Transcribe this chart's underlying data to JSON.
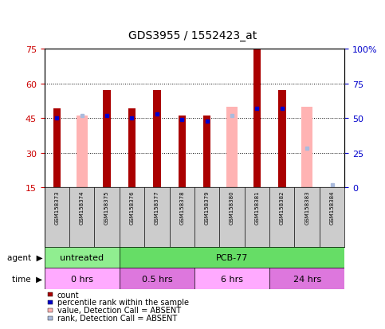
{
  "title": "GDS3955 / 1552423_at",
  "samples": [
    "GSM158373",
    "GSM158374",
    "GSM158375",
    "GSM158376",
    "GSM158377",
    "GSM158378",
    "GSM158379",
    "GSM158380",
    "GSM158381",
    "GSM158382",
    "GSM158383",
    "GSM158384"
  ],
  "count_values": [
    49,
    null,
    57,
    49,
    57,
    46,
    46,
    null,
    75,
    57,
    null,
    null
  ],
  "count_absent": [
    null,
    46,
    null,
    null,
    null,
    null,
    null,
    50,
    null,
    null,
    50,
    null
  ],
  "rank_values": [
    50,
    null,
    52,
    50,
    53,
    49,
    48,
    null,
    57,
    57,
    null,
    null
  ],
  "rank_absent": [
    null,
    52,
    null,
    null,
    null,
    null,
    null,
    52,
    null,
    null,
    28,
    2
  ],
  "ylim_left": [
    15,
    75
  ],
  "ylim_right": [
    0,
    100
  ],
  "left_ticks": [
    15,
    30,
    45,
    60,
    75
  ],
  "right_ticks": [
    0,
    25,
    50,
    75,
    100
  ],
  "bar_color": "#aa0000",
  "absent_bar_color": "#ffb3b3",
  "rank_color": "#0000cc",
  "rank_absent_color": "#aabbdd",
  "bg_color": "#ffffff",
  "left_tick_color": "#cc0000",
  "right_tick_color": "#0000cc",
  "agent_row": [
    {
      "label": "untreated",
      "start": 0,
      "end": 3,
      "color": "#90ee90"
    },
    {
      "label": "PCB-77",
      "start": 3,
      "end": 12,
      "color": "#66dd66"
    }
  ],
  "time_row": [
    {
      "label": "0 hrs",
      "start": 0,
      "end": 3,
      "color": "#ffaaff"
    },
    {
      "label": "0.5 hrs",
      "start": 3,
      "end": 6,
      "color": "#dd77dd"
    },
    {
      "label": "6 hrs",
      "start": 6,
      "end": 9,
      "color": "#ffaaff"
    },
    {
      "label": "24 hrs",
      "start": 9,
      "end": 12,
      "color": "#dd77dd"
    }
  ],
  "legend_items": [
    {
      "color": "#aa0000",
      "type": "rect",
      "label": "count"
    },
    {
      "color": "#0000cc",
      "type": "rect",
      "label": "percentile rank within the sample"
    },
    {
      "color": "#ffb3b3",
      "type": "rect",
      "label": "value, Detection Call = ABSENT"
    },
    {
      "color": "#aabbdd",
      "type": "rect",
      "label": "rank, Detection Call = ABSENT"
    }
  ]
}
